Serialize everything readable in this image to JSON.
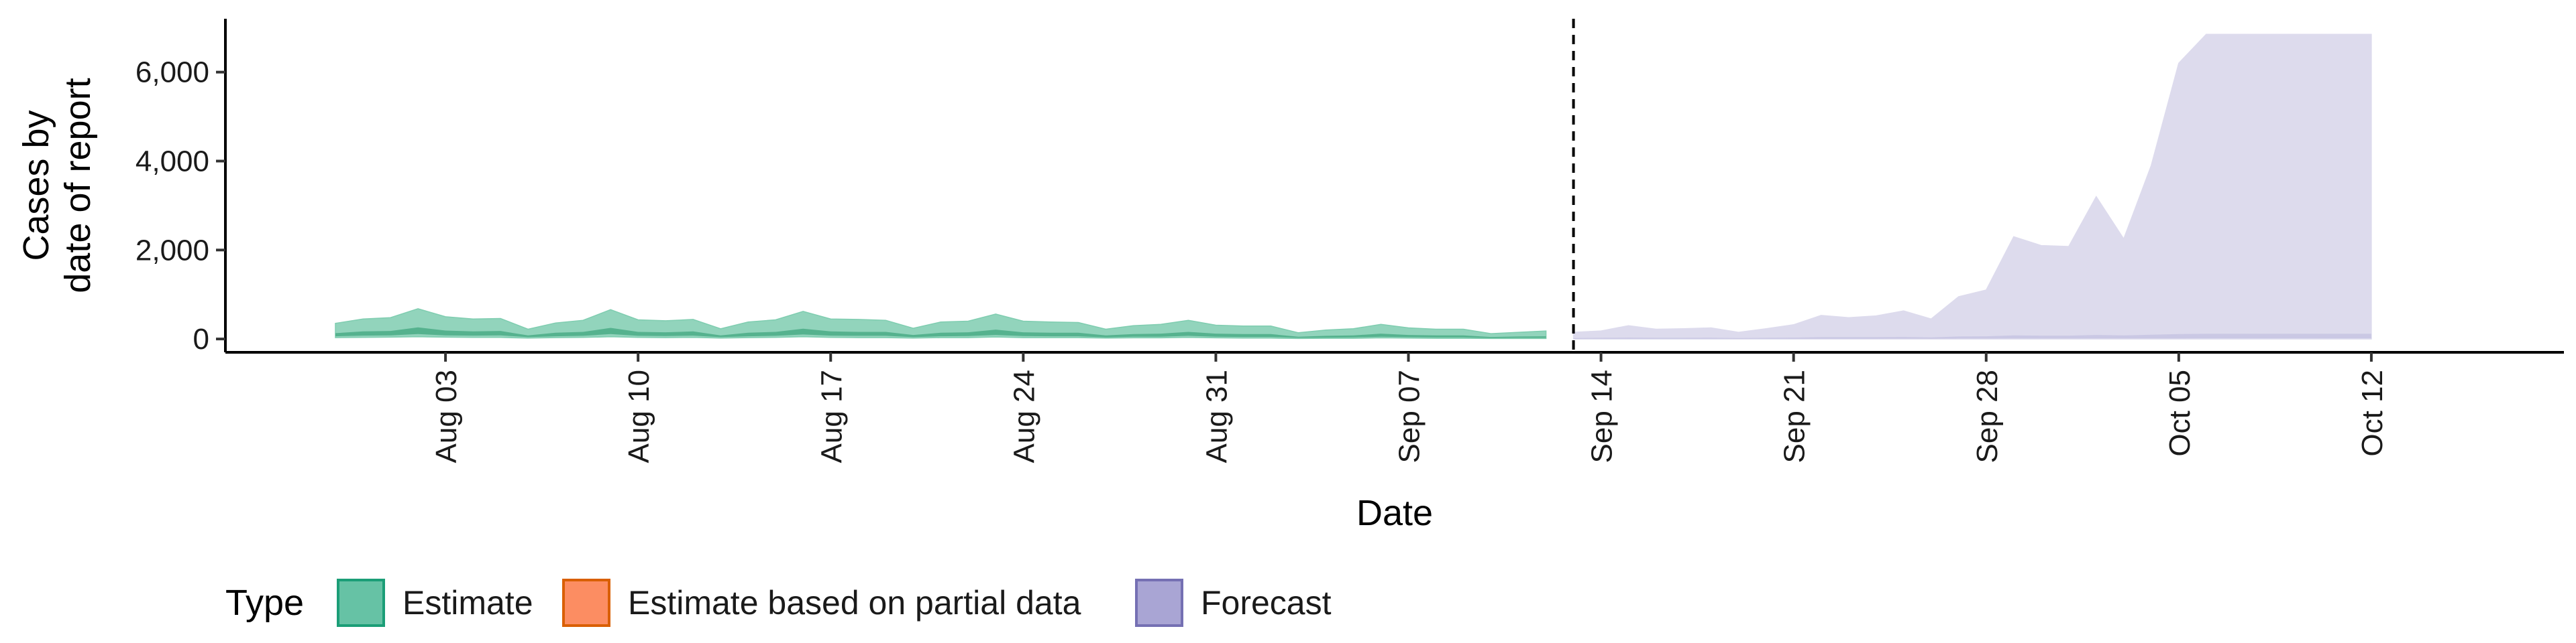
{
  "chart_data": {
    "type": "area",
    "xlabel": "Date",
    "ylabel_lines": [
      "Cases by",
      "date of report"
    ],
    "x_ticks": [
      "Aug 03",
      "Aug 10",
      "Aug 17",
      "Aug 24",
      "Aug 31",
      "Sep 07",
      "Sep 14",
      "Sep 21",
      "Sep 28",
      "Oct 05",
      "Oct 12"
    ],
    "x_tick_dates": [
      "2020-08-03",
      "2020-08-10",
      "2020-08-17",
      "2020-08-24",
      "2020-08-31",
      "2020-09-07",
      "2020-09-14",
      "2020-09-21",
      "2020-09-28",
      "2020-10-05",
      "2020-10-12"
    ],
    "xlim": [
      "2020-07-26",
      "2020-10-19"
    ],
    "y_ticks": [
      0,
      2000,
      4000,
      6000
    ],
    "y_tick_labels": [
      "0",
      "2,000",
      "4,000",
      "6,000"
    ],
    "ylim": [
      -300,
      7200
    ],
    "forecast_start": "2020-09-13",
    "legend": {
      "title": "Type",
      "position": "bottom",
      "entries": [
        {
          "label": "Estimate",
          "fill": "#66c2a5",
          "stroke": "#1b9e77"
        },
        {
          "label": "Estimate based on partial data",
          "fill": "#fc8d62",
          "stroke": "#d95f02"
        },
        {
          "label": "Forecast",
          "fill": "#a9a5d4",
          "stroke": "#7570b3"
        }
      ]
    },
    "series": [
      {
        "name": "Estimate",
        "outer_color": "#7fcdb0",
        "inner_color": "#4fae88",
        "x": [
          "2020-07-30",
          "2020-07-31",
          "2020-08-01",
          "2020-08-02",
          "2020-08-03",
          "2020-08-04",
          "2020-08-05",
          "2020-08-06",
          "2020-08-07",
          "2020-08-08",
          "2020-08-09",
          "2020-08-10",
          "2020-08-11",
          "2020-08-12",
          "2020-08-13",
          "2020-08-14",
          "2020-08-15",
          "2020-08-16",
          "2020-08-17",
          "2020-08-18",
          "2020-08-19",
          "2020-08-20",
          "2020-08-21",
          "2020-08-22",
          "2020-08-23",
          "2020-08-24",
          "2020-08-25",
          "2020-08-26",
          "2020-08-27",
          "2020-08-28",
          "2020-08-29",
          "2020-08-30",
          "2020-08-31",
          "2020-09-01",
          "2020-09-02",
          "2020-09-03",
          "2020-09-04",
          "2020-09-05",
          "2020-09-06",
          "2020-09-07",
          "2020-09-08",
          "2020-09-09",
          "2020-09-10",
          "2020-09-11",
          "2020-09-12"
        ],
        "upper_90": [
          350,
          450,
          480,
          680,
          500,
          450,
          460,
          220,
          360,
          420,
          660,
          430,
          410,
          440,
          230,
          380,
          430,
          620,
          450,
          440,
          420,
          240,
          380,
          400,
          560,
          400,
          380,
          370,
          220,
          300,
          330,
          420,
          310,
          290,
          290,
          140,
          200,
          230,
          330,
          250,
          220,
          220,
          120,
          150,
          180
        ],
        "lower_90": [
          30,
          35,
          40,
          50,
          40,
          35,
          35,
          20,
          30,
          35,
          50,
          35,
          30,
          35,
          20,
          30,
          35,
          50,
          35,
          30,
          30,
          20,
          30,
          30,
          45,
          30,
          30,
          30,
          20,
          25,
          25,
          35,
          25,
          20,
          20,
          10,
          15,
          15,
          25,
          20,
          15,
          15,
          10,
          10,
          10
        ],
        "upper_50": [
          130,
          170,
          180,
          260,
          190,
          170,
          180,
          80,
          140,
          160,
          250,
          160,
          150,
          170,
          80,
          140,
          160,
          230,
          170,
          160,
          160,
          90,
          140,
          150,
          210,
          150,
          140,
          140,
          80,
          110,
          120,
          160,
          120,
          110,
          110,
          50,
          70,
          80,
          120,
          90,
          80,
          80,
          45,
          55,
          60
        ],
        "lower_50": [
          60,
          75,
          80,
          110,
          80,
          75,
          80,
          40,
          60,
          70,
          110,
          70,
          65,
          75,
          40,
          60,
          70,
          100,
          75,
          70,
          70,
          40,
          60,
          65,
          90,
          65,
          60,
          60,
          35,
          50,
          50,
          70,
          50,
          45,
          45,
          25,
          30,
          35,
          50,
          40,
          35,
          35,
          20,
          25,
          25
        ]
      },
      {
        "name": "Forecast",
        "outer_color": "#dddbed",
        "inner_color": "#c8c5e2",
        "x": [
          "2020-09-13",
          "2020-09-14",
          "2020-09-15",
          "2020-09-16",
          "2020-09-17",
          "2020-09-18",
          "2020-09-19",
          "2020-09-20",
          "2020-09-21",
          "2020-09-22",
          "2020-09-23",
          "2020-09-24",
          "2020-09-25",
          "2020-09-26",
          "2020-09-27",
          "2020-09-28",
          "2020-09-29",
          "2020-09-30",
          "2020-10-01",
          "2020-10-02",
          "2020-10-03",
          "2020-10-04",
          "2020-10-05",
          "2020-10-06",
          "2020-10-07",
          "2020-10-08",
          "2020-10-09",
          "2020-10-10",
          "2020-10-11",
          "2020-10-12"
        ],
        "upper_90": [
          150,
          180,
          300,
          220,
          230,
          250,
          150,
          230,
          320,
          530,
          480,
          520,
          630,
          450,
          950,
          1100,
          2300,
          2100,
          2080,
          3200,
          2250,
          3900,
          6200,
          6850,
          6850,
          6850,
          6850,
          6850,
          6850,
          6850
        ],
        "lower_90": [
          0,
          0,
          0,
          0,
          0,
          0,
          0,
          0,
          0,
          0,
          0,
          0,
          0,
          0,
          0,
          0,
          0,
          0,
          0,
          0,
          0,
          0,
          0,
          0,
          0,
          0,
          0,
          0,
          0,
          0
        ],
        "upper_50": [
          20,
          25,
          30,
          25,
          25,
          28,
          20,
          25,
          30,
          40,
          40,
          40,
          45,
          35,
          55,
          60,
          80,
          75,
          75,
          90,
          80,
          95,
          110,
          115,
          115,
          115,
          115,
          115,
          115,
          115
        ],
        "lower_50": [
          3,
          4,
          5,
          4,
          4,
          4,
          3,
          4,
          5,
          6,
          6,
          6,
          7,
          5,
          8,
          9,
          11,
          10,
          10,
          12,
          11,
          13,
          14,
          15,
          15,
          15,
          15,
          15,
          15,
          15
        ]
      }
    ]
  }
}
